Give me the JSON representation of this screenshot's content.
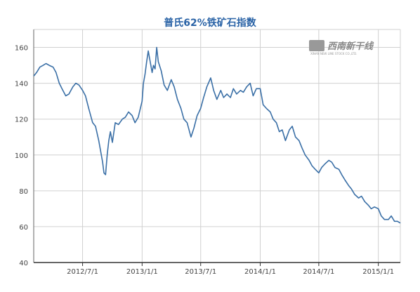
{
  "chart_data": {
    "type": "line",
    "title": "普氏62%铁矿石指数",
    "xlabel": "",
    "ylabel": "",
    "ylim": [
      40,
      170
    ],
    "y_ticks": [
      40,
      60,
      80,
      100,
      120,
      140,
      160
    ],
    "x_tick_labels": [
      "2012/7/1",
      "2013/1/1",
      "2013/7/1",
      "2014/1/1",
      "2014/7/1",
      "2015/1/1"
    ],
    "x_tick_values": [
      "2012-07-01",
      "2013-01-01",
      "2013-07-01",
      "2014-01-01",
      "2014-07-01",
      "2015-01-01"
    ],
    "x_range": [
      "2012-02-01",
      "2015-03-10"
    ],
    "grid": true,
    "line_color": "#3a6fa6",
    "series": [
      {
        "x": [
          "2012-02-01",
          "2012-02-10",
          "2012-02-20",
          "2012-03-01",
          "2012-03-10",
          "2012-03-20",
          "2012-04-01",
          "2012-04-10",
          "2012-04-20",
          "2012-05-01",
          "2012-05-10",
          "2012-05-20",
          "2012-06-01",
          "2012-06-10",
          "2012-06-20",
          "2012-07-01",
          "2012-07-10",
          "2012-07-20",
          "2012-08-01",
          "2012-08-10",
          "2012-08-20",
          "2012-09-01",
          "2012-09-05",
          "2012-09-10",
          "2012-09-15",
          "2012-09-20",
          "2012-09-25",
          "2012-10-01",
          "2012-10-10",
          "2012-10-20",
          "2012-11-01",
          "2012-11-10",
          "2012-11-20",
          "2012-12-01",
          "2012-12-10",
          "2012-12-20",
          "2013-01-01",
          "2013-01-05",
          "2013-01-10",
          "2013-01-15",
          "2013-01-20",
          "2013-02-01",
          "2013-02-05",
          "2013-02-10",
          "2013-02-15",
          "2013-02-20",
          "2013-03-01",
          "2013-03-10",
          "2013-03-20",
          "2013-04-01",
          "2013-04-10",
          "2013-04-20",
          "2013-05-01",
          "2013-05-10",
          "2013-05-20",
          "2013-06-01",
          "2013-06-10",
          "2013-06-20",
          "2013-07-01",
          "2013-07-10",
          "2013-07-20",
          "2013-08-01",
          "2013-08-10",
          "2013-08-20",
          "2013-09-01",
          "2013-09-10",
          "2013-09-20",
          "2013-10-01",
          "2013-10-10",
          "2013-10-20",
          "2013-11-01",
          "2013-11-10",
          "2013-11-20",
          "2013-12-01",
          "2013-12-10",
          "2013-12-20",
          "2014-01-01",
          "2014-01-10",
          "2014-01-20",
          "2014-02-01",
          "2014-02-10",
          "2014-02-20",
          "2014-03-01",
          "2014-03-10",
          "2014-03-20",
          "2014-04-01",
          "2014-04-10",
          "2014-04-20",
          "2014-05-01",
          "2014-05-10",
          "2014-05-20",
          "2014-06-01",
          "2014-06-10",
          "2014-06-20",
          "2014-07-01",
          "2014-07-10",
          "2014-07-20",
          "2014-08-01",
          "2014-08-10",
          "2014-08-20",
          "2014-09-01",
          "2014-09-10",
          "2014-09-20",
          "2014-10-01",
          "2014-10-10",
          "2014-10-20",
          "2014-11-01",
          "2014-11-10",
          "2014-11-20",
          "2014-12-01",
          "2014-12-10",
          "2014-12-20",
          "2015-01-01",
          "2015-01-10",
          "2015-01-20",
          "2015-02-01",
          "2015-02-10",
          "2015-02-20",
          "2015-03-01",
          "2015-03-10"
        ],
        "y": [
          144,
          146,
          149,
          150,
          151,
          150,
          149,
          146,
          140,
          136,
          133,
          134,
          138,
          140,
          139,
          136,
          133,
          126,
          118,
          116,
          108,
          96,
          90,
          89,
          100,
          108,
          113,
          107,
          118,
          117,
          120,
          121,
          124,
          122,
          118,
          121,
          130,
          140,
          145,
          152,
          158,
          146,
          150,
          148,
          160,
          152,
          147,
          139,
          136,
          142,
          138,
          131,
          126,
          120,
          118,
          110,
          115,
          122,
          126,
          132,
          138,
          143,
          136,
          131,
          136,
          132,
          134,
          132,
          137,
          134,
          136,
          135,
          138,
          140,
          133,
          137,
          137,
          128,
          126,
          124,
          120,
          118,
          113,
          114,
          108,
          114,
          116,
          110,
          108,
          104,
          100,
          97,
          94,
          92,
          90,
          93,
          95,
          97,
          96,
          93,
          92,
          89,
          86,
          83,
          81,
          78,
          76,
          77,
          74,
          72,
          70,
          71,
          70,
          66,
          64,
          64,
          66,
          63,
          63,
          62
        ]
      }
    ]
  },
  "watermark": {
    "brand_text": "西南新干线",
    "sub_text": "XINAN NEW LINE STOCK CO.,LTD."
  }
}
